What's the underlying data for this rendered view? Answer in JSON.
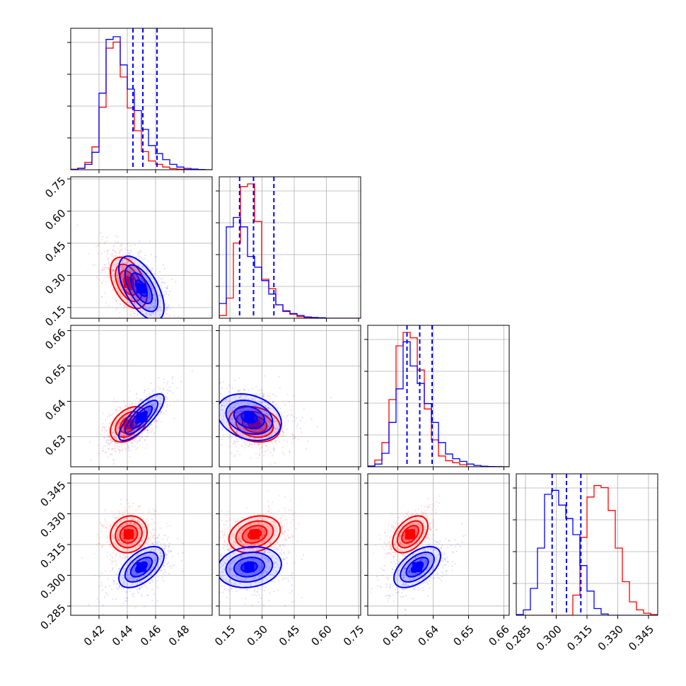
{
  "chart_data": {
    "type": "corner",
    "grid": true,
    "legend": "none",
    "colors": {
      "red": "#ff0000",
      "blue": "#0000ff",
      "grid": "#b0b0b0",
      "frame": "#000000"
    },
    "params": [
      {
        "range": [
          0.4,
          0.5
        ],
        "ticks": [
          "0.42",
          "0.44",
          "0.46",
          "0.48"
        ],
        "tick_values": [
          0.42,
          0.44,
          0.46,
          0.48
        ]
      },
      {
        "range": [
          0.1,
          0.76
        ],
        "ticks": [
          "0.15",
          "0.30",
          "0.45",
          "0.60",
          "0.75"
        ],
        "tick_values": [
          0.15,
          0.3,
          0.45,
          0.6,
          0.75
        ]
      },
      {
        "range": [
          0.6215,
          0.6615
        ],
        "ticks": [
          "0.63",
          "0.64",
          "0.65",
          "0.66"
        ],
        "tick_values": [
          0.63,
          0.64,
          0.65,
          0.66
        ]
      },
      {
        "range": [
          0.2805,
          0.3495
        ],
        "ticks": [
          "0.285",
          "0.300",
          "0.315",
          "0.330",
          "0.345"
        ],
        "tick_values": [
          0.285,
          0.3,
          0.315,
          0.33,
          0.345
        ]
      }
    ],
    "left_axis_ticks": {
      "row1": [
        "0.15",
        "0.30",
        "0.45",
        "0.60",
        "0.75"
      ],
      "row2": [
        "0.63",
        "0.64",
        "0.65",
        "0.66"
      ],
      "row3": [
        "0.285",
        "0.300",
        "0.315",
        "0.330",
        "0.345"
      ]
    },
    "series": [
      {
        "color": "red",
        "histograms": [
          [
            0.004,
            0.012,
            0.055,
            0.17,
            0.465,
            0.905,
            0.95,
            0.69,
            0.46,
            0.29,
            0.135,
            0.065,
            0.04,
            0.02,
            0.008,
            0.004,
            0.002,
            0.001,
            0.0005,
            0.0
          ],
          [
            0.02,
            0.15,
            0.56,
            0.98,
            1.0,
            0.72,
            0.29,
            0.22,
            0.1,
            0.05,
            0.03,
            0.012,
            0.006,
            0.003,
            0.001,
            0.0,
            0.0,
            0.0,
            0.0,
            0.0
          ],
          [
            0.005,
            0.05,
            0.18,
            0.5,
            0.9,
            1.0,
            0.96,
            0.72,
            0.43,
            0.2,
            0.08,
            0.045,
            0.03,
            0.015,
            0.0,
            0.0,
            0.0,
            0.0,
            0.0,
            0.0
          ],
          [
            0.0,
            0.0,
            0.0,
            0.0,
            0.0,
            0.0,
            0.0,
            0.0,
            0.15,
            0.58,
            0.88,
            0.965,
            0.95,
            0.78,
            0.5,
            0.25,
            0.1,
            0.04,
            0.015,
            0.005
          ]
        ],
        "means": [
          0.441,
          0.265,
          0.6335,
          0.32
        ],
        "spreads": [
          0.0065,
          0.06,
          0.0025,
          0.0045
        ]
      },
      {
        "color": "blue",
        "histograms": [
          [
            0.002,
            0.01,
            0.04,
            0.13,
            0.57,
            0.97,
            0.99,
            0.78,
            0.6,
            0.44,
            0.3,
            0.18,
            0.12,
            0.075,
            0.04,
            0.02,
            0.01,
            0.005,
            0.002,
            0.0
          ],
          [
            0.11,
            0.68,
            0.75,
            0.68,
            0.46,
            0.38,
            0.28,
            0.18,
            0.1,
            0.055,
            0.035,
            0.02,
            0.01,
            0.006,
            0.004,
            0.0,
            0.0,
            0.0,
            0.0,
            0.0
          ],
          [
            0.005,
            0.02,
            0.1,
            0.33,
            0.58,
            0.93,
            0.75,
            0.62,
            0.47,
            0.33,
            0.18,
            0.095,
            0.06,
            0.04,
            0.02,
            0.01,
            0.004,
            0.002,
            0.001,
            0.0
          ],
          [
            0.005,
            0.04,
            0.2,
            0.5,
            0.9,
            0.93,
            0.82,
            0.72,
            0.6,
            0.37,
            0.18,
            0.05,
            0.01,
            0.0,
            0.0,
            0.0,
            0.0,
            0.0,
            0.0,
            0.0
          ]
        ],
        "means": [
          0.45,
          0.24,
          0.6355,
          0.304
        ],
        "spreads": [
          0.008,
          0.075,
          0.0033,
          0.005
        ]
      }
    ],
    "quantiles_blue": [
      [
        0.444,
        0.451,
        0.461
      ],
      [
        0.195,
        0.26,
        0.355
      ],
      [
        0.6326,
        0.6362,
        0.6397
      ],
      [
        0.298,
        0.305,
        0.312
      ]
    ],
    "correlations": {
      "red": {
        "1-0": -0.45,
        "2-0": 0.4,
        "2-1": -0.2,
        "3-0": 0.1,
        "3-1": 0.25,
        "3-2": 0.45
      },
      "blue": {
        "1-0": -0.6,
        "2-0": 0.8,
        "2-1": -0.25,
        "3-0": 0.55,
        "3-1": 0.15,
        "3-2": 0.55
      }
    }
  }
}
